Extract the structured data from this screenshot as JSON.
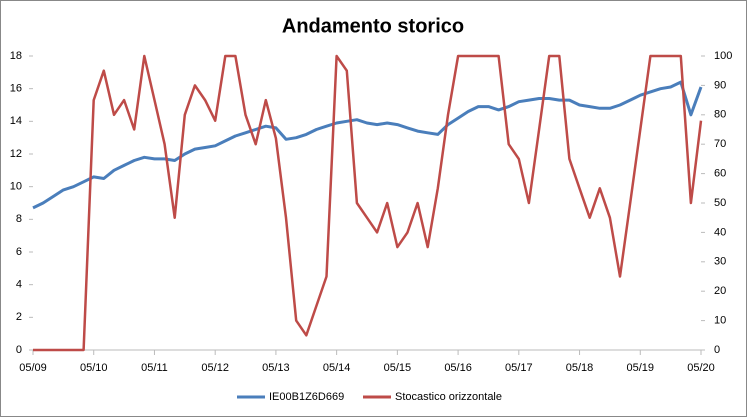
{
  "chart_data": {
    "type": "line",
    "title": "Andamento storico",
    "categories": [
      "05/09",
      null,
      null,
      null,
      null,
      null,
      "05/10",
      null,
      null,
      null,
      null,
      null,
      "05/11",
      null,
      null,
      null,
      null,
      null,
      "05/12",
      null,
      null,
      null,
      null,
      null,
      "05/13",
      null,
      null,
      null,
      null,
      null,
      "05/14",
      null,
      null,
      null,
      null,
      null,
      "05/15",
      null,
      null,
      null,
      null,
      null,
      "05/16",
      null,
      null,
      null,
      null,
      null,
      "05/17",
      null,
      null,
      null,
      null,
      null,
      "05/18",
      null,
      null,
      null,
      null,
      null,
      "05/19",
      null,
      null,
      null,
      null,
      null,
      "05/20"
    ],
    "series": [
      {
        "name": "IE00B1Z6D669",
        "color": "#4a7ebb",
        "axis": "y",
        "values": [
          8.7,
          9.0,
          9.4,
          9.8,
          10.0,
          10.3,
          10.6,
          10.5,
          11.0,
          11.3,
          11.6,
          11.8,
          11.7,
          11.7,
          11.6,
          12.0,
          12.3,
          12.4,
          12.5,
          12.8,
          13.1,
          13.3,
          13.5,
          13.7,
          13.6,
          12.9,
          13.0,
          13.2,
          13.5,
          13.7,
          13.9,
          14.0,
          14.1,
          13.9,
          13.8,
          13.9,
          13.8,
          13.6,
          13.4,
          13.3,
          13.2,
          13.8,
          14.2,
          14.6,
          14.9,
          14.9,
          14.7,
          14.9,
          15.2,
          15.3,
          15.4,
          15.4,
          15.3,
          15.3,
          15.0,
          14.9,
          14.8,
          14.8,
          15.0,
          15.3,
          15.6,
          15.8,
          16.0,
          16.1,
          16.4,
          14.4,
          16.1
        ]
      },
      {
        "name": "Stocastico orizzontale",
        "color": "#be4b48",
        "axis": "y2",
        "values": [
          0,
          0,
          0,
          0,
          0,
          0,
          85,
          95,
          80,
          85,
          75,
          100,
          85,
          70,
          45,
          80,
          90,
          85,
          78,
          100,
          100,
          80,
          70,
          85,
          72,
          45,
          10,
          5,
          15,
          25,
          100,
          95,
          50,
          45,
          40,
          50,
          35,
          40,
          50,
          35,
          55,
          80,
          100,
          100,
          100,
          100,
          100,
          70,
          65,
          50,
          75,
          100,
          100,
          65,
          55,
          45,
          55,
          45,
          25,
          50,
          75,
          100,
          100,
          100,
          100,
          50,
          78
        ]
      }
    ],
    "ylim": [
      0,
      18
    ],
    "yticks": [
      0,
      2,
      4,
      6,
      8,
      10,
      12,
      14,
      16,
      18
    ],
    "y2lim": [
      0,
      100
    ],
    "y2ticks": [
      0,
      10,
      20,
      30,
      40,
      50,
      60,
      70,
      80,
      90,
      100
    ],
    "legend": "bottom",
    "grid": false
  }
}
